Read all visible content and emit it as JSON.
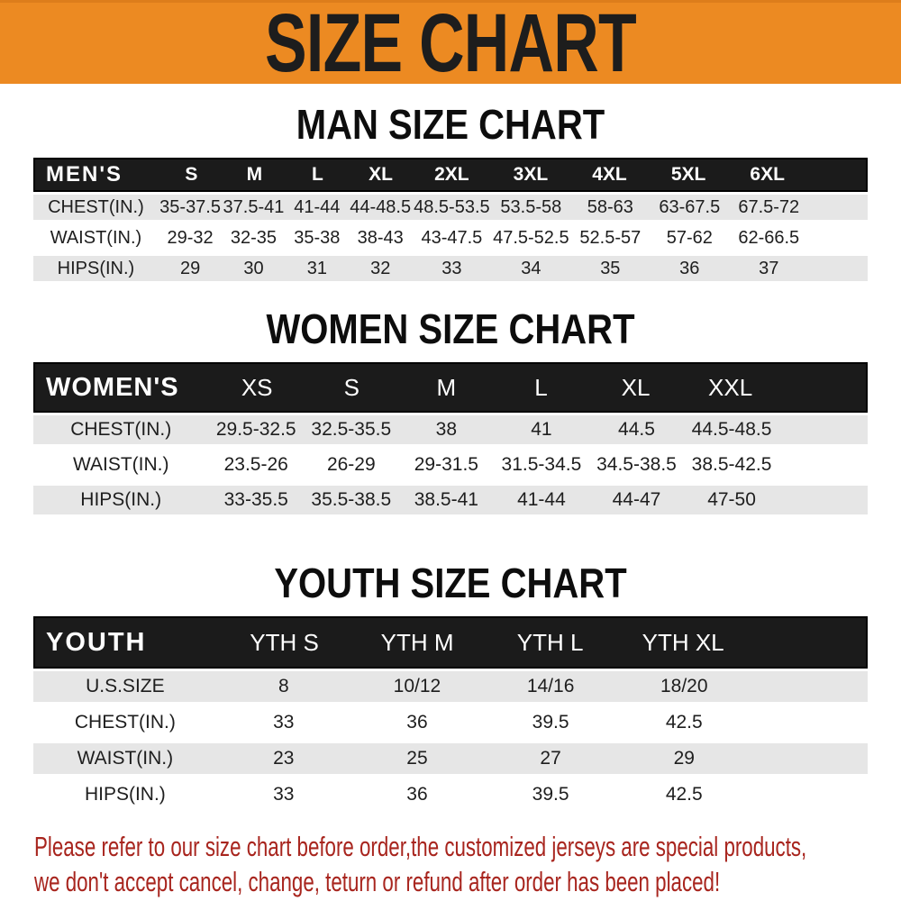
{
  "banner": {
    "title": "SIZE CHART"
  },
  "colors": {
    "banner_bg": "#EC8A22",
    "header_bar_bg": "#1B1B1B",
    "alt_row_bg": "#E6E6E6",
    "note_text": "#A8251E"
  },
  "chart_data": [
    {
      "type": "table",
      "id": "men",
      "title": "MAN SIZE CHART",
      "group_label": "MEN'S",
      "sizes": [
        "S",
        "M",
        "L",
        "XL",
        "2XL",
        "3XL",
        "4XL",
        "5XL",
        "6XL"
      ],
      "rows": [
        {
          "label": "CHEST(IN.)",
          "values": [
            "35-37.5",
            "37.5-41",
            "41-44",
            "44-48.5",
            "48.5-53.5",
            "53.5-58",
            "58-63",
            "63-67.5",
            "67.5-72"
          ]
        },
        {
          "label": "WAIST(IN.)",
          "values": [
            "29-32",
            "32-35",
            "35-38",
            "38-43",
            "43-47.5",
            "47.5-52.5",
            "52.5-57",
            "57-62",
            "62-66.5"
          ]
        },
        {
          "label": "HIPS(IN.)",
          "values": [
            "29",
            "30",
            "31",
            "32",
            "33",
            "34",
            "35",
            "36",
            "37"
          ]
        }
      ]
    },
    {
      "type": "table",
      "id": "women",
      "title": "WOMEN SIZE CHART",
      "group_label": "WOMEN'S",
      "sizes": [
        "XS",
        "S",
        "M",
        "L",
        "XL",
        "XXL"
      ],
      "rows": [
        {
          "label": "CHEST(IN.)",
          "values": [
            "29.5-32.5",
            "32.5-35.5",
            "38",
            "41",
            "44.5",
            "44.5-48.5"
          ]
        },
        {
          "label": "WAIST(IN.)",
          "values": [
            "23.5-26",
            "26-29",
            "29-31.5",
            "31.5-34.5",
            "34.5-38.5",
            "38.5-42.5"
          ]
        },
        {
          "label": "HIPS(IN.)",
          "values": [
            "33-35.5",
            "35.5-38.5",
            "38.5-41",
            "41-44",
            "44-47",
            "47-50"
          ]
        }
      ]
    },
    {
      "type": "table",
      "id": "youth",
      "title": "YOUTH SIZE CHART",
      "group_label": "YOUTH",
      "sizes": [
        "YTH S",
        "YTH M",
        "YTH L",
        "YTH XL"
      ],
      "rows": [
        {
          "label": "U.S.SIZE",
          "values": [
            "8",
            "10/12",
            "14/16",
            "18/20"
          ]
        },
        {
          "label": "CHEST(IN.)",
          "values": [
            "33",
            "36",
            "39.5",
            "42.5"
          ]
        },
        {
          "label": "WAIST(IN.)",
          "values": [
            "23",
            "25",
            "27",
            "29"
          ]
        },
        {
          "label": "HIPS(IN.)",
          "values": [
            "33",
            "36",
            "39.5",
            "42.5"
          ]
        }
      ]
    }
  ],
  "note": {
    "lines": [
      "Please refer to our size chart before order,the customized jerseys are special products,",
      "we don't accept cancel, change, teturn or refund after order has been placed!"
    ]
  }
}
